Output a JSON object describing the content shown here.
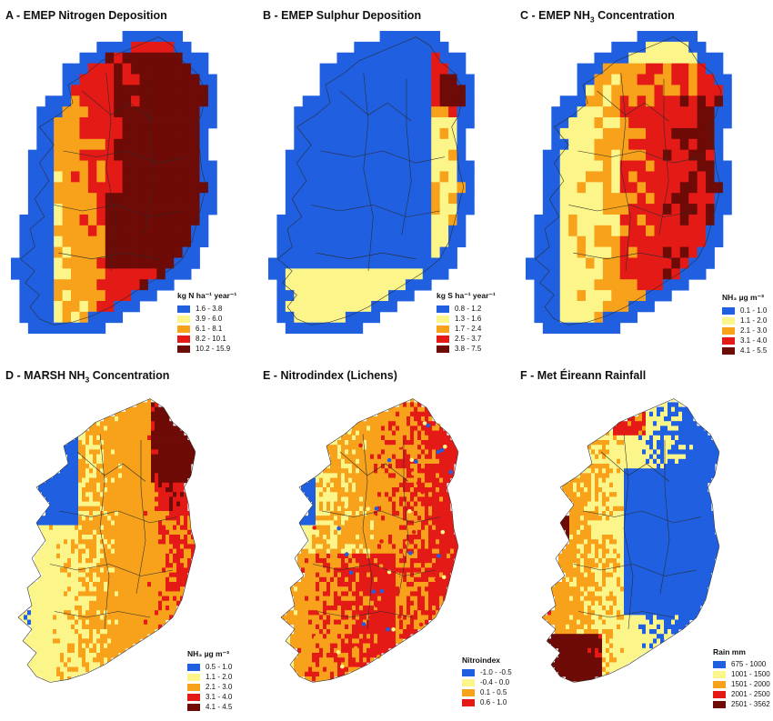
{
  "panels": [
    {
      "id": "A",
      "title": "A - EMEP Nitrogen Deposition",
      "style": "grid",
      "legend": {
        "title": "kg N ha⁻¹ year⁻¹",
        "items": [
          {
            "label": "1.6 - 3.8",
            "color": "#1f5fe0"
          },
          {
            "label": "3.9 - 6.0",
            "color": "#fbf58a"
          },
          {
            "label": "6.1 - 8.1",
            "color": "#f7a21a"
          },
          {
            "label": "8.2 - 10.1",
            "color": "#e41a17"
          },
          {
            "label": "10.2 - 15.9",
            "color": "#6e0b06"
          }
        ]
      }
    },
    {
      "id": "B",
      "title": "B - EMEP Sulphur Deposition",
      "style": "grid",
      "legend": {
        "title": "kg S ha⁻¹ year⁻¹",
        "items": [
          {
            "label": "0.8 - 1.2",
            "color": "#1f5fe0"
          },
          {
            "label": "1.3 - 1.6",
            "color": "#fbf58a"
          },
          {
            "label": "1.7 - 2.4",
            "color": "#f7a21a"
          },
          {
            "label": "2.5 - 3.7",
            "color": "#e41a17"
          },
          {
            "label": "3.8 - 7.5",
            "color": "#6e0b06"
          }
        ]
      }
    },
    {
      "id": "C",
      "title_main": "C - EMEP NH",
      "title_sub": "3",
      "title_rest": " Concentration",
      "style": "grid",
      "legend": {
        "title": "NH₃ µg m⁻³",
        "items": [
          {
            "label": "0.1 - 1.0",
            "color": "#1f5fe0"
          },
          {
            "label": "1.1 - 2.0",
            "color": "#fbf58a"
          },
          {
            "label": "2.1 - 3.0",
            "color": "#f7a21a"
          },
          {
            "label": "3.1 - 4.0",
            "color": "#e41a17"
          },
          {
            "label": "4.1 - 5.5",
            "color": "#6e0b06"
          }
        ]
      }
    },
    {
      "id": "D",
      "title_main": "D - MARSH NH",
      "title_sub": "3",
      "title_rest": " Concentration",
      "style": "smooth",
      "legend": {
        "title": "NH₃ µg m⁻³",
        "items": [
          {
            "label": "0.5 - 1.0",
            "color": "#1f5fe0"
          },
          {
            "label": "1.1 - 2.0",
            "color": "#fbf58a"
          },
          {
            "label": "2.1 - 3.0",
            "color": "#f7a21a"
          },
          {
            "label": "3.1 - 4.0",
            "color": "#e41a17"
          },
          {
            "label": "4.1 - 4.5",
            "color": "#6e0b06"
          }
        ]
      }
    },
    {
      "id": "E",
      "title": "E - Nitrodindex (Lichens)",
      "style": "smooth",
      "legend": {
        "title": "Nitroindex",
        "items": [
          {
            "label": "-1.0 - -0.5",
            "color": "#1f5fe0"
          },
          {
            "label": "-0.4 - 0.0",
            "color": "#fbf58a"
          },
          {
            "label": "0.1 - 0.5",
            "color": "#f7a21a"
          },
          {
            "label": "0.6 - 1.0",
            "color": "#e41a17"
          }
        ]
      }
    },
    {
      "id": "F",
      "title": "F - Met Éireann Rainfall",
      "style": "smooth",
      "legend": {
        "title": "Rain mm",
        "items": [
          {
            "label": "675 - 1000",
            "color": "#1f5fe0"
          },
          {
            "label": "1001 - 1500",
            "color": "#fbf58a"
          },
          {
            "label": "1501 - 2000",
            "color": "#f7a21a"
          },
          {
            "label": "2001 - 2500",
            "color": "#e41a17"
          },
          {
            "label": "2501 - 3562",
            "color": "#6e0b06"
          }
        ]
      }
    }
  ]
}
